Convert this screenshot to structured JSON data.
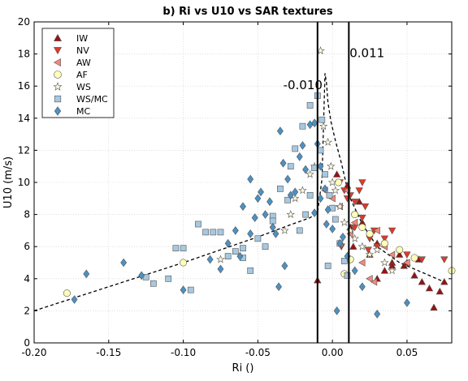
{
  "chart_data": {
    "type": "scatter",
    "title": "b) Ri vs U10 vs SAR textures",
    "xlabel": "Ri ()",
    "ylabel": "U10 (m/s)",
    "xlim": [
      -0.2,
      0.08
    ],
    "ylim": [
      0,
      20
    ],
    "xticks": [
      "-0.20",
      "-0.15",
      "-0.10",
      "-0.05",
      "0.00",
      "0.05"
    ],
    "xtick_values": [
      -0.2,
      -0.15,
      -0.1,
      -0.05,
      0.0,
      0.05
    ],
    "yticks": [
      "0",
      "2",
      "4",
      "6",
      "8",
      "10",
      "12",
      "14",
      "16",
      "18",
      "20"
    ],
    "ytick_values": [
      0,
      2,
      4,
      6,
      8,
      10,
      12,
      14,
      16,
      18,
      20
    ],
    "grid": true,
    "legend_position": "top-left",
    "vlines": [
      {
        "x": -0.01,
        "label": "-0.010",
        "label_x": -0.033,
        "label_y": 15.8
      },
      {
        "x": 0.011,
        "label": "0.011",
        "label_x": 0.0115,
        "label_y": 17.8
      }
    ],
    "curve": {
      "style": "dashed",
      "x": [
        -0.2,
        -0.15,
        -0.1,
        -0.05,
        -0.03,
        -0.015,
        -0.01,
        -0.007,
        -0.005,
        -0.004,
        -0.003,
        -0.001,
        0.002,
        0.006,
        0.011,
        0.02,
        0.03,
        0.045,
        0.06,
        0.075
      ],
      "y": [
        2.0,
        3.5,
        5.0,
        6.6,
        7.3,
        7.8,
        8.1,
        10.2,
        16.8,
        16.2,
        15.0,
        13.8,
        12.6,
        11.2,
        9.2,
        7.4,
        6.0,
        5.0,
        4.4,
        3.8
      ]
    },
    "series": [
      {
        "name": "IW",
        "marker": "triangle-up",
        "color": "#9b1111",
        "x": [
          -0.01,
          0.003,
          0.01,
          0.014,
          0.02,
          0.025,
          0.03,
          0.035,
          0.04,
          0.045,
          0.05,
          0.055,
          0.06,
          0.065,
          0.068,
          0.072,
          0.075,
          0.04,
          0.03,
          0.018,
          0.012,
          0.048,
          0.058
        ],
        "y": [
          3.9,
          10.5,
          9.8,
          6.0,
          7.5,
          5.5,
          6.2,
          4.5,
          5.0,
          5.5,
          5.0,
          4.2,
          3.8,
          3.4,
          2.2,
          3.2,
          3.8,
          4.8,
          4.0,
          8.8,
          7.2,
          4.8,
          5.2
        ]
      },
      {
        "name": "NV",
        "marker": "triangle-down",
        "color": "#dd3a2b",
        "x": [
          0.005,
          0.008,
          0.012,
          0.015,
          0.018,
          0.02,
          0.022,
          0.025,
          0.028,
          0.03,
          0.035,
          0.04,
          0.05,
          0.06,
          0.075,
          0.01,
          0.015,
          0.02,
          0.006,
          0.024
        ],
        "y": [
          10.0,
          9.5,
          9.2,
          8.8,
          9.5,
          7.8,
          8.5,
          6.5,
          7.0,
          6.0,
          6.5,
          7.0,
          5.5,
          5.2,
          5.2,
          9.0,
          7.2,
          10.0,
          6.0,
          5.8
        ]
      },
      {
        "name": "AW",
        "marker": "triangle-left",
        "color": "#f28a7a",
        "x": [
          0.0,
          0.005,
          0.01,
          0.015,
          0.02,
          0.025,
          0.03,
          0.035,
          0.04,
          0.05,
          -0.005,
          0.012,
          0.028
        ],
        "y": [
          9.0,
          8.5,
          9.5,
          7.5,
          5.0,
          4.0,
          7.0,
          6.0,
          5.5,
          5.0,
          9.5,
          6.8,
          3.8
        ]
      },
      {
        "name": "AF",
        "marker": "circle",
        "color": "#ffffb8",
        "x": [
          -0.178,
          -0.1,
          0.008,
          0.004,
          0.015,
          0.025,
          0.035,
          0.045,
          0.055,
          0.08,
          0.012,
          0.02
        ],
        "y": [
          3.1,
          5.0,
          4.3,
          10.0,
          8.0,
          6.8,
          6.2,
          5.8,
          5.3,
          4.5,
          5.2,
          7.2
        ]
      },
      {
        "name": "WS",
        "marker": "star",
        "color": "#fffde0",
        "x": [
          -0.008,
          -0.006,
          -0.003,
          -0.001,
          0.0,
          0.002,
          0.005,
          0.008,
          0.012,
          0.015,
          0.02,
          0.025,
          0.03,
          0.035,
          0.04,
          -0.012,
          -0.015,
          -0.02,
          -0.075,
          -0.032,
          -0.028,
          -0.025
        ],
        "y": [
          18.2,
          13.5,
          12.5,
          11.0,
          10.0,
          9.5,
          8.5,
          7.5,
          7.0,
          6.5,
          6.0,
          5.5,
          5.8,
          5.0,
          4.5,
          11.0,
          10.5,
          9.5,
          5.2,
          7.0,
          8.0,
          9.0
        ]
      },
      {
        "name": "WS/MC",
        "marker": "square",
        "color": "#a7c8e0",
        "x": [
          -0.12,
          -0.1,
          -0.09,
          -0.08,
          -0.07,
          -0.06,
          -0.05,
          -0.04,
          -0.03,
          -0.02,
          -0.015,
          -0.01,
          -0.008,
          -0.005,
          -0.002,
          0.0,
          0.002,
          0.005,
          0.008,
          0.01,
          -0.025,
          -0.035,
          -0.045,
          -0.055,
          -0.065,
          -0.075,
          -0.085,
          -0.095,
          -0.105,
          -0.125,
          -0.015,
          -0.012,
          -0.018,
          -0.022,
          -0.028,
          -0.04,
          -0.06,
          -0.007,
          -0.003,
          -0.11
        ],
        "y": [
          3.7,
          5.9,
          7.4,
          6.9,
          5.4,
          5.9,
          6.5,
          7.9,
          8.9,
          13.5,
          14.8,
          15.4,
          12.0,
          10.5,
          9.2,
          8.4,
          7.7,
          6.2,
          5.1,
          4.2,
          12.1,
          9.6,
          6.0,
          4.5,
          5.7,
          6.9,
          6.9,
          3.3,
          5.9,
          4.1,
          9.2,
          10.9,
          8.0,
          7.0,
          11.0,
          7.6,
          5.3,
          13.9,
          4.8,
          4.0
        ]
      },
      {
        "name": "MC",
        "marker": "diamond",
        "color": "#4b91c4",
        "x": [
          -0.173,
          -0.165,
          -0.14,
          -0.128,
          -0.1,
          -0.082,
          -0.075,
          -0.07,
          -0.065,
          -0.06,
          -0.055,
          -0.05,
          -0.045,
          -0.04,
          -0.035,
          -0.03,
          -0.025,
          -0.02,
          -0.015,
          -0.012,
          -0.01,
          -0.008,
          -0.005,
          -0.003,
          0.0,
          0.005,
          0.01,
          0.015,
          0.02,
          0.03,
          0.05,
          -0.062,
          -0.055,
          -0.048,
          -0.042,
          -0.038,
          -0.033,
          -0.028,
          -0.022,
          -0.018,
          -0.012,
          -0.008,
          -0.004,
          0.003,
          0.007,
          -0.032,
          -0.036,
          -0.052
        ],
        "y": [
          2.7,
          4.3,
          5.0,
          4.2,
          3.3,
          5.2,
          4.6,
          6.2,
          7.0,
          8.5,
          10.2,
          9.0,
          8.0,
          7.2,
          13.2,
          10.2,
          9.4,
          12.3,
          13.6,
          13.7,
          12.4,
          11.0,
          9.6,
          8.3,
          7.1,
          6.2,
          5.4,
          4.5,
          3.5,
          1.8,
          2.5,
          5.4,
          6.8,
          9.4,
          8.8,
          6.8,
          11.2,
          9.2,
          11.6,
          10.8,
          8.1,
          9.0,
          7.4,
          2.0,
          6.6,
          4.8,
          3.5,
          7.8
        ]
      }
    ]
  }
}
